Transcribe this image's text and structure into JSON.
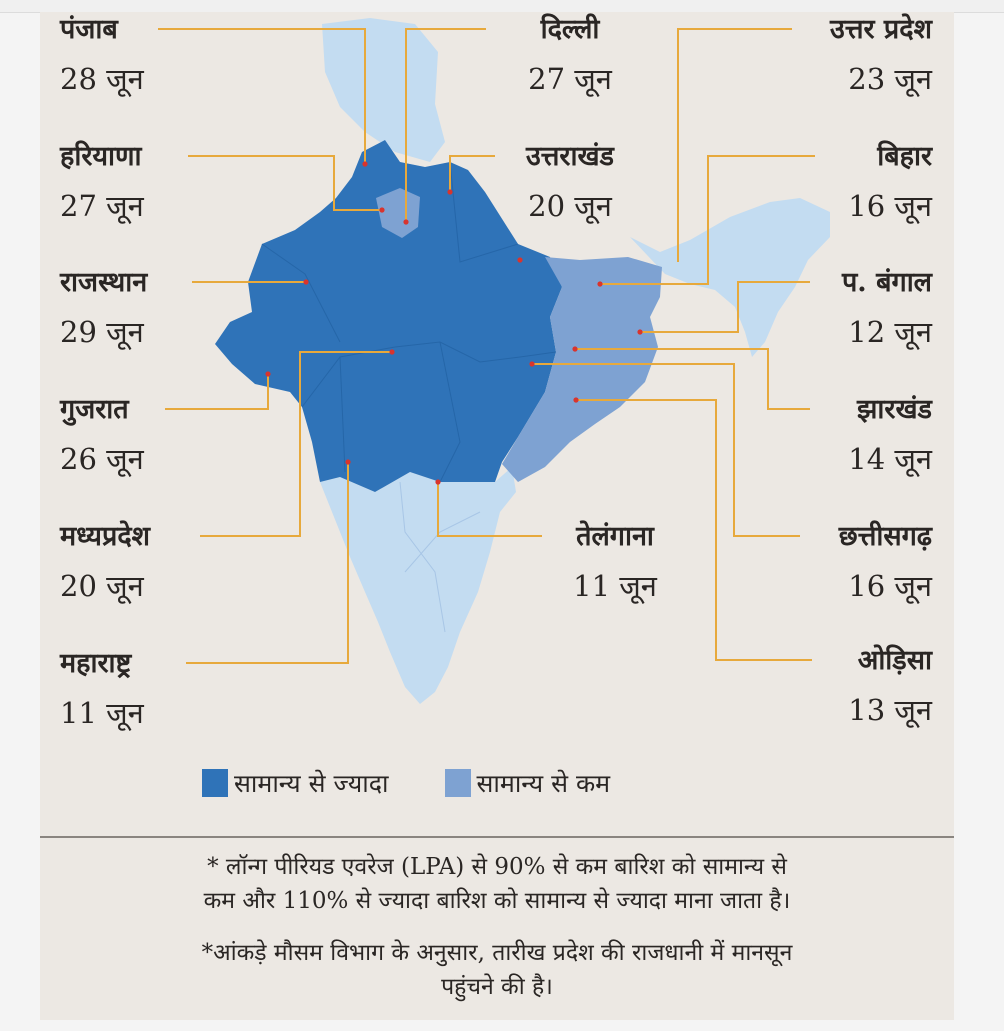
{
  "map": {
    "labels_left": [
      {
        "id": "punjab",
        "state": "पंजाब",
        "date": "28 जून"
      },
      {
        "id": "haryana",
        "state": "हरियाणा",
        "date": "27 जून"
      },
      {
        "id": "rajasthan",
        "state": "राजस्थान",
        "date": "29 जून"
      },
      {
        "id": "gujarat",
        "state": "गुजरात",
        "date": "26 जून"
      },
      {
        "id": "madhya-pradesh",
        "state": "मध्यप्रदेश",
        "date": "20 जून"
      },
      {
        "id": "maharashtra",
        "state": "महाराष्ट्र",
        "date": "11 जून"
      }
    ],
    "labels_center": [
      {
        "id": "delhi",
        "state": "दिल्ली",
        "date": "27 जून"
      },
      {
        "id": "uttarakhand",
        "state": "उत्तराखंड",
        "date": "20 जून"
      },
      {
        "id": "telangana",
        "state": "तेलंगाना",
        "date": "11 जून"
      }
    ],
    "labels_right": [
      {
        "id": "uttar-pradesh",
        "state": "उत्तर प्रदेश",
        "date": "23 जून"
      },
      {
        "id": "bihar",
        "state": "बिहार",
        "date": "16 जून"
      },
      {
        "id": "west-bengal",
        "state": "प. बंगाल",
        "date": "12 जून"
      },
      {
        "id": "jharkhand",
        "state": "झारखंड",
        "date": "14 जून"
      },
      {
        "id": "chhattisgarh",
        "state": "छत्तीसगढ़",
        "date": "16 जून"
      },
      {
        "id": "odisha",
        "state": "ओड़िसा",
        "date": "13 जून"
      }
    ],
    "colors": {
      "above_normal": "#2f73b8",
      "below_normal": "#7ea2d2",
      "other": "#c3dcf1",
      "leader_line": "#e7a93c",
      "marker": "#d8342e"
    }
  },
  "legend": {
    "above_normal": "सामान्य से ज्यादा",
    "below_normal": "सामान्य से कम"
  },
  "notes": {
    "line1": "* लॉन्ग पीरियड एवरेज (LPA) से 90% से कम बारिश को सामान्य से",
    "line2": "कम और 110% से ज्यादा बारिश को सामान्य से ज्यादा माना जाता है।",
    "line3": "*आंकड़े मौसम विभाग के अनुसार, तारीख प्रदेश की राजधानी में मानसून",
    "line4": "पहुंचने की है।"
  }
}
